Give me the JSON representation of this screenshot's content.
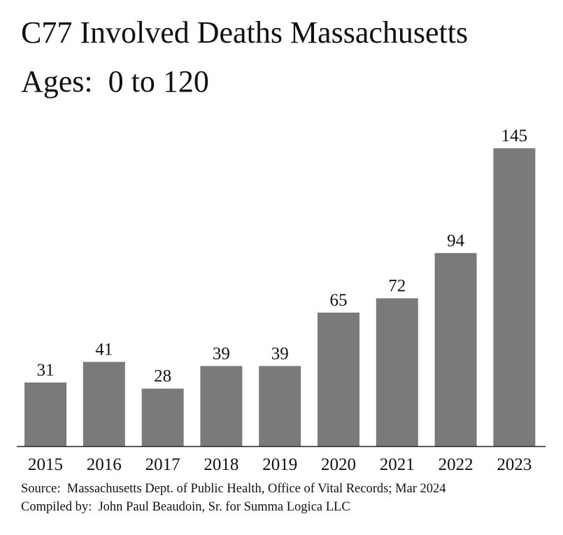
{
  "chart_data": {
    "type": "bar",
    "title": "C77 Involved Deaths Massachusetts",
    "subtitle": "Ages:  0 to 120",
    "categories": [
      "2015",
      "2016",
      "2017",
      "2018",
      "2019",
      "2020",
      "2021",
      "2022",
      "2023"
    ],
    "values": [
      31,
      41,
      28,
      39,
      39,
      65,
      72,
      94,
      145
    ],
    "xlabel": "",
    "ylabel": "",
    "ylim": [
      0,
      145
    ],
    "grid": false,
    "legend": "none",
    "bar_color": "#7a7a7a",
    "data_labels": true
  },
  "footer": {
    "source": "Source:  Massachusetts Dept. of Public Health, Office of Vital Records; Mar 2024",
    "compiled": "Compiled by:  John Paul Beaudoin, Sr. for Summa Logica LLC"
  }
}
